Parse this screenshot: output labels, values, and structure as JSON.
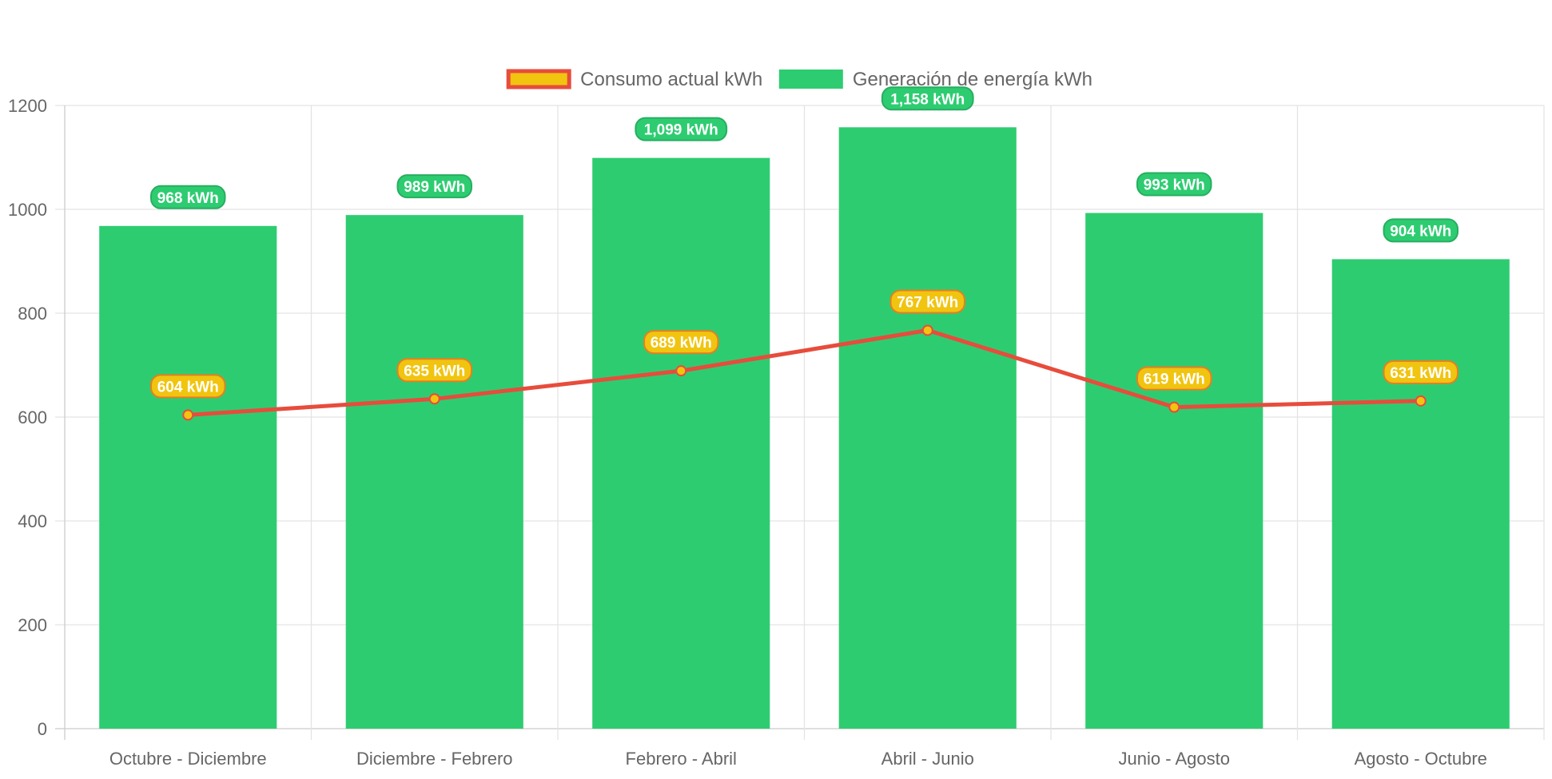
{
  "chart_data": {
    "type": "bar",
    "categories": [
      "Octubre - Diciembre",
      "Diciembre - Febrero",
      "Febrero - Abril",
      "Abril - Junio",
      "Junio - Agosto",
      "Agosto - Octubre"
    ],
    "series": [
      {
        "name": "Consumo actual kWh",
        "type": "line",
        "values": [
          604,
          635,
          689,
          767,
          619,
          631
        ],
        "labels": [
          "604 kWh",
          "635 kWh",
          "689 kWh",
          "767 kWh",
          "619 kWh",
          "631 kWh"
        ],
        "color": "#e74c3c",
        "fill": "#f1c40f"
      },
      {
        "name": "Generación de energía kWh",
        "type": "bar",
        "values": [
          968,
          989,
          1099,
          1158,
          993,
          904
        ],
        "labels": [
          "968 kWh",
          "989 kWh",
          "1,099 kWh",
          "1,158 kWh",
          "993 kWh",
          "904 kWh"
        ],
        "color": "#2ecc71",
        "border": "#27ae60"
      }
    ],
    "yticks": [
      "0",
      "200",
      "400",
      "600",
      "800",
      "1000",
      "1200"
    ],
    "ylim": [
      0,
      1200
    ],
    "grid": true,
    "legend": "top-center",
    "title": "",
    "xlabel": "",
    "ylabel": ""
  }
}
